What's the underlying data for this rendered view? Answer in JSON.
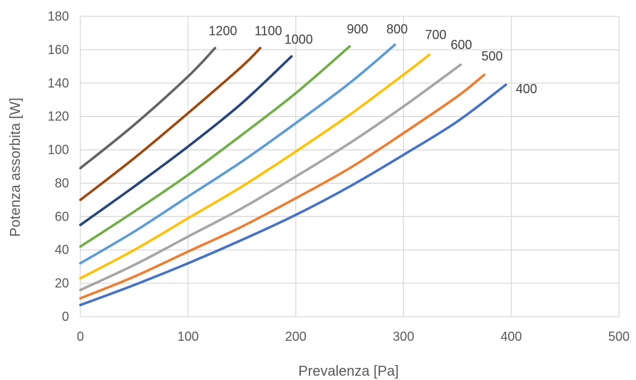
{
  "chart_data": {
    "type": "line",
    "title": "",
    "xlabel": "Prevalenza [Pa]",
    "ylabel": "Potenza assorbita [W]",
    "xlim": [
      0,
      500
    ],
    "ylim": [
      0,
      180
    ],
    "x_ticks": [
      "0",
      "100",
      "200",
      "300",
      "400",
      "500"
    ],
    "y_ticks": [
      "0",
      "20",
      "40",
      "60",
      "80",
      "100",
      "120",
      "140",
      "160",
      "180"
    ],
    "grid": true,
    "legend": "none (series labeled at line ends)",
    "series": [
      {
        "name": "400",
        "color": "#4472C4",
        "points": [
          [
            0,
            7
          ],
          [
            50,
            19
          ],
          [
            100,
            32
          ],
          [
            150,
            46
          ],
          [
            200,
            61
          ],
          [
            250,
            78
          ],
          [
            300,
            97
          ],
          [
            350,
            117
          ],
          [
            395,
            139
          ]
        ]
      },
      {
        "name": "500",
        "color": "#ED7D31",
        "points": [
          [
            0,
            11
          ],
          [
            50,
            24
          ],
          [
            100,
            39
          ],
          [
            150,
            54
          ],
          [
            200,
            71
          ],
          [
            250,
            89
          ],
          [
            300,
            110
          ],
          [
            350,
            132
          ],
          [
            375,
            145
          ]
        ]
      },
      {
        "name": "600",
        "color": "#A5A5A5",
        "points": [
          [
            0,
            16
          ],
          [
            50,
            31
          ],
          [
            100,
            48
          ],
          [
            150,
            65
          ],
          [
            200,
            84
          ],
          [
            250,
            104
          ],
          [
            300,
            126
          ],
          [
            353,
            151
          ]
        ]
      },
      {
        "name": "700",
        "color": "#FFC000",
        "points": [
          [
            0,
            23
          ],
          [
            50,
            40
          ],
          [
            100,
            59
          ],
          [
            150,
            78
          ],
          [
            200,
            99
          ],
          [
            250,
            121
          ],
          [
            300,
            145
          ],
          [
            324,
            157
          ]
        ]
      },
      {
        "name": "800",
        "color": "#5B9BD5",
        "points": [
          [
            0,
            32
          ],
          [
            50,
            51
          ],
          [
            100,
            72
          ],
          [
            150,
            93
          ],
          [
            200,
            116
          ],
          [
            250,
            140
          ],
          [
            292,
            163
          ]
        ]
      },
      {
        "name": "900",
        "color": "#70AD47",
        "points": [
          [
            0,
            42
          ],
          [
            50,
            63
          ],
          [
            100,
            85
          ],
          [
            150,
            109
          ],
          [
            200,
            134
          ],
          [
            250,
            162
          ]
        ]
      },
      {
        "name": "1000",
        "color": "#264478",
        "points": [
          [
            0,
            55
          ],
          [
            50,
            78
          ],
          [
            100,
            102
          ],
          [
            150,
            128
          ],
          [
            196,
            156
          ]
        ]
      },
      {
        "name": "1100",
        "color": "#9E480E",
        "points": [
          [
            0,
            70
          ],
          [
            50,
            95
          ],
          [
            100,
            122
          ],
          [
            150,
            150
          ],
          [
            167,
            161
          ]
        ]
      },
      {
        "name": "1200",
        "color": "#636363",
        "points": [
          [
            0,
            89
          ],
          [
            50,
            115
          ],
          [
            100,
            144
          ],
          [
            125,
            161
          ]
        ]
      }
    ]
  }
}
